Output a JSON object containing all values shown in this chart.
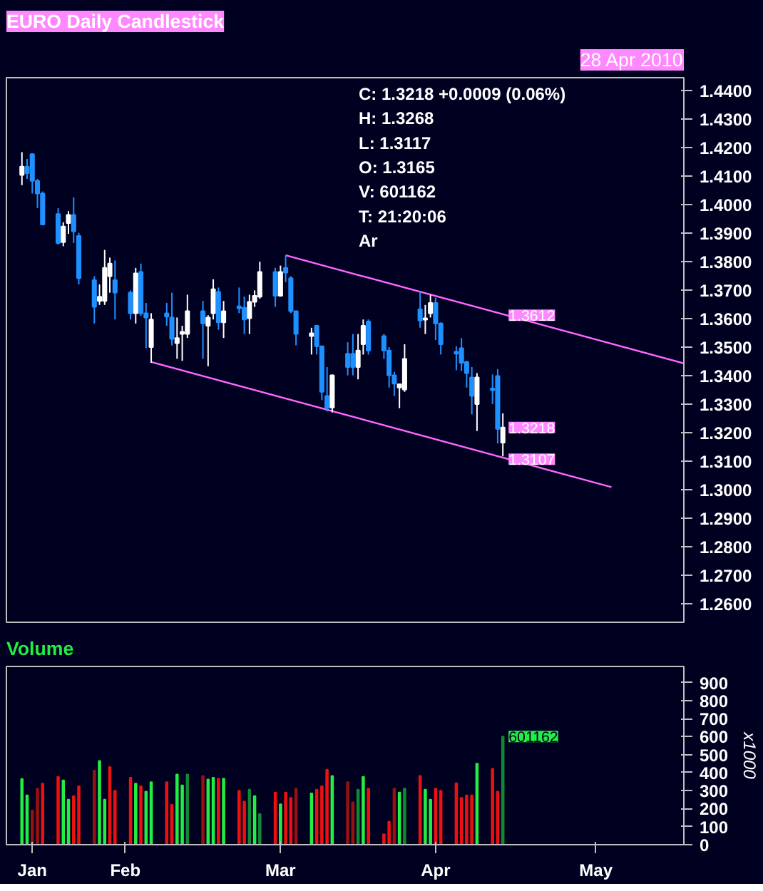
{
  "chart_data": [
    {
      "type": "candlestick",
      "title": "EURO Daily Candlestick",
      "subtitle": "28 Apr 2010",
      "annotations": [
        "C: 1.3218  +0.0009 (0.06%)",
        "H: 1.3268",
        "L: 1.3117",
        "O: 1.3165",
        "V: 601162",
        "T: 21:20:06",
        "Ar",
        {
          "text": "1.3612",
          "x": "2010-04-28",
          "y": 1.3612
        },
        {
          "text": "1.3218",
          "x": "2010-04-28",
          "y": 1.3218
        },
        {
          "text": "1.3107",
          "x": "2010-04-28",
          "y": 1.3107
        }
      ],
      "x": [
        "2010-01-25",
        "2010-01-26",
        "2010-01-27",
        "2010-01-28",
        "2010-01-29",
        "2010-02-01",
        "2010-02-02",
        "2010-02-03",
        "2010-02-04",
        "2010-02-05",
        "2010-02-08",
        "2010-02-09",
        "2010-02-10",
        "2010-02-11",
        "2010-02-12",
        "2010-02-15",
        "2010-02-16",
        "2010-02-17",
        "2010-02-18",
        "2010-02-19",
        "2010-02-22",
        "2010-02-23",
        "2010-02-24",
        "2010-02-25",
        "2010-02-26",
        "2010-03-01",
        "2010-03-02",
        "2010-03-03",
        "2010-03-04",
        "2010-03-05",
        "2010-03-08",
        "2010-03-09",
        "2010-03-10",
        "2010-03-11",
        "2010-03-12",
        "2010-03-15",
        "2010-03-16",
        "2010-03-17",
        "2010-03-18",
        "2010-03-19",
        "2010-03-22",
        "2010-03-23",
        "2010-03-24",
        "2010-03-25",
        "2010-03-26",
        "2010-03-29",
        "2010-03-30",
        "2010-03-31",
        "2010-04-01",
        "2010-04-02",
        "2010-04-05",
        "2010-04-06",
        "2010-04-07",
        "2010-04-08",
        "2010-04-09",
        "2010-04-12",
        "2010-04-13",
        "2010-04-14",
        "2010-04-15",
        "2010-04-16",
        "2010-04-19",
        "2010-04-20",
        "2010-04-21",
        "2010-04-22",
        "2010-04-23",
        "2010-04-26",
        "2010-04-27",
        "2010-04-28"
      ],
      "ohlc": [
        [
          1.4104,
          1.4184,
          1.4068,
          1.4133
        ],
        [
          1.4133,
          1.416,
          1.409,
          1.411
        ],
        [
          1.4177,
          1.418,
          1.4039,
          1.4083
        ],
        [
          1.4083,
          1.409,
          1.3988,
          1.4039
        ],
        [
          1.4039,
          1.4046,
          1.393,
          1.393
        ],
        [
          1.3967,
          1.3988,
          1.386,
          1.3865
        ],
        [
          1.3868,
          1.3938,
          1.3854,
          1.3923
        ],
        [
          1.3935,
          1.3977,
          1.3897,
          1.3964
        ],
        [
          1.3964,
          1.4025,
          1.3865,
          1.3906
        ],
        [
          1.389,
          1.3901,
          1.372,
          1.3742
        ],
        [
          1.3735,
          1.3749,
          1.3583,
          1.3641
        ],
        [
          1.3662,
          1.372,
          1.3648,
          1.3677
        ],
        [
          1.3662,
          1.3841,
          1.3648,
          1.3778
        ],
        [
          1.3749,
          1.3814,
          1.3691,
          1.3793
        ],
        [
          1.3735,
          1.3804,
          1.3597,
          1.3691
        ],
        [
          1.3691,
          1.3699,
          1.3597,
          1.3619
        ],
        [
          1.3619,
          1.3778,
          1.3583,
          1.3759
        ],
        [
          1.3764,
          1.3793,
          1.361,
          1.3619
        ],
        [
          1.3619,
          1.3655,
          1.3496,
          1.3604
        ],
        [
          1.35,
          1.3619,
          1.3445,
          1.3597
        ],
        [
          1.3619,
          1.3655,
          1.3575,
          1.3607
        ],
        [
          1.3604,
          1.3691,
          1.3506,
          1.3529
        ],
        [
          1.3514,
          1.3604,
          1.3459,
          1.3532
        ],
        [
          1.3546,
          1.3575,
          1.3452,
          1.3554
        ],
        [
          1.3546,
          1.3684,
          1.3532,
          1.3626
        ],
        [
          1.3626,
          1.3662,
          1.3459,
          1.3583
        ],
        [
          1.3575,
          1.3612,
          1.3433,
          1.3604
        ],
        [
          1.3619,
          1.3738,
          1.3597,
          1.3703
        ],
        [
          1.3694,
          1.3709,
          1.3561,
          1.3587
        ],
        [
          1.3587,
          1.3662,
          1.3532,
          1.3626
        ],
        [
          1.3643,
          1.3709,
          1.3619,
          1.3636
        ],
        [
          1.3638,
          1.3677,
          1.3546,
          1.3597
        ],
        [
          1.3601,
          1.3684,
          1.3546,
          1.3659
        ],
        [
          1.3659,
          1.3699,
          1.3641,
          1.368
        ],
        [
          1.3677,
          1.38,
          1.367,
          1.3764
        ],
        [
          1.3764,
          1.3778,
          1.3641,
          1.368
        ],
        [
          1.368,
          1.3786,
          1.3677,
          1.3764
        ],
        [
          1.3778,
          1.3822,
          1.3728,
          1.3761
        ],
        [
          1.3742,
          1.3749,
          1.3619,
          1.3626
        ],
        [
          1.3626,
          1.3626,
          1.3506,
          1.3546
        ],
        [
          1.3539,
          1.3568,
          1.3474,
          1.3549
        ],
        [
          1.3575,
          1.3575,
          1.3474,
          1.3503
        ],
        [
          1.3503,
          1.3503,
          1.3314,
          1.3343
        ],
        [
          1.3329,
          1.343,
          1.3274,
          1.3286
        ],
        [
          1.3288,
          1.3404,
          1.3271,
          1.3401
        ],
        [
          1.3477,
          1.3517,
          1.3401,
          1.343
        ],
        [
          1.3477,
          1.3546,
          1.3401,
          1.343
        ],
        [
          1.343,
          1.3546,
          1.3387,
          1.3488
        ],
        [
          1.351,
          1.3597,
          1.3474,
          1.3575
        ],
        [
          1.359,
          1.3597,
          1.3474,
          1.3488
        ],
        [
          1.3539,
          1.3546,
          1.3459,
          1.3488
        ],
        [
          1.3488,
          1.35,
          1.3358,
          1.3401
        ],
        [
          1.3401,
          1.3413,
          1.3329,
          1.3372
        ],
        [
          1.3358,
          1.3372,
          1.3286,
          1.337
        ],
        [
          1.3351,
          1.351,
          1.3343,
          1.3459
        ],
        [
          1.3633,
          1.3694,
          1.3568,
          1.3593
        ],
        [
          1.3596,
          1.3648,
          1.3546,
          1.3601
        ],
        [
          1.3619,
          1.3684,
          1.3604,
          1.3655
        ],
        [
          1.3655,
          1.3674,
          1.3525,
          1.3583
        ],
        [
          1.3583,
          1.3587,
          1.3474,
          1.351
        ],
        [
          1.3484,
          1.3503,
          1.3419,
          1.3477
        ],
        [
          1.3496,
          1.3532,
          1.3416,
          1.3445
        ],
        [
          1.3448,
          1.3452,
          1.3358,
          1.3409
        ],
        [
          1.3394,
          1.343,
          1.3264,
          1.3329
        ],
        [
          1.33,
          1.3409,
          1.3206,
          1.3394
        ],
        [
          1.3355,
          1.3404,
          1.33,
          1.3349
        ],
        [
          1.3399,
          1.3423,
          1.3162,
          1.3213
        ],
        [
          1.3165,
          1.3268,
          1.3117,
          1.3218
        ]
      ],
      "colors": [
        "#ffffff",
        "#1e90ff",
        "#1e90ff",
        "#1e90ff",
        "#1e90ff",
        "#1e90ff",
        "#ffffff",
        "#ffffff",
        "#1e90ff",
        "#1e90ff",
        "#1e90ff",
        "#ffffff",
        "#ffffff",
        "#ffffff",
        "#1e90ff",
        "#1e90ff",
        "#ffffff",
        "#1e90ff",
        "#1e90ff",
        "#ffffff",
        "#1e90ff",
        "#1e90ff",
        "#ffffff",
        "#ffffff",
        "#ffffff",
        "#1e90ff",
        "#ffffff",
        "#ffffff",
        "#1e90ff",
        "#ffffff",
        "#1e90ff",
        "#1e90ff",
        "#ffffff",
        "#ffffff",
        "#ffffff",
        "#1e90ff",
        "#ffffff",
        "#1e90ff",
        "#1e90ff",
        "#1e90ff",
        "#ffffff",
        "#1e90ff",
        "#1e90ff",
        "#1e90ff",
        "#ffffff",
        "#1e90ff",
        "#1e90ff",
        "#ffffff",
        "#ffffff",
        "#1e90ff",
        "#1e90ff",
        "#1e90ff",
        "#1e90ff",
        "#ffffff",
        "#ffffff",
        "#1e90ff",
        "#ffffff",
        "#ffffff",
        "#1e90ff",
        "#1e90ff",
        "#1e90ff",
        "#1e90ff",
        "#1e90ff",
        "#1e90ff",
        "#ffffff",
        "#1e90ff",
        "#1e90ff",
        "#ffffff"
      ],
      "series": [
        {
          "type": "line",
          "color": "#ff66ff",
          "x": [
            "2010-03-17",
            "2010-06-02"
          ],
          "values": [
            1.3822,
            1.3443
          ]
        },
        {
          "type": "line",
          "color": "#ff66ff",
          "x": [
            "2010-02-19",
            "2010-05-19"
          ],
          "values": [
            1.3448,
            1.3009
          ]
        }
      ],
      "xlim": [
        "2010-01-22",
        "2010-06-02"
      ],
      "ylim": [
        1.2535,
        1.4445
      ],
      "yticks": [
        {
          "value": 1.26,
          "label": "1.2600"
        },
        {
          "value": 1.27,
          "label": "1.2700"
        },
        {
          "value": 1.28,
          "label": "1.2800"
        },
        {
          "value": 1.29,
          "label": "1.2900"
        },
        {
          "value": 1.3,
          "label": "1.3000"
        },
        {
          "value": 1.31,
          "label": "1.3100"
        },
        {
          "value": 1.32,
          "label": "1.3200"
        },
        {
          "value": 1.33,
          "label": "1.3300"
        },
        {
          "value": 1.34,
          "label": "1.3400"
        },
        {
          "value": 1.35,
          "label": "1.3500"
        },
        {
          "value": 1.36,
          "label": "1.3600"
        },
        {
          "value": 1.37,
          "label": "1.3700"
        },
        {
          "value": 1.38,
          "label": "1.3800"
        },
        {
          "value": 1.39,
          "label": "1.3900"
        },
        {
          "value": 1.4,
          "label": "1.4000"
        },
        {
          "value": 1.41,
          "label": "1.4100"
        },
        {
          "value": 1.42,
          "label": "1.4200"
        },
        {
          "value": 1.43,
          "label": "1.4300"
        },
        {
          "value": 1.44,
          "label": "1.4400"
        }
      ],
      "tick_labels": "y"
    },
    {
      "type": "bar",
      "title": "Volume",
      "ylabel": "x1000",
      "annotations": [
        {
          "text": "601162",
          "x": "2010-04-28",
          "y": 601.162
        }
      ],
      "x": [
        "2010-01-25",
        "2010-01-26",
        "2010-01-27",
        "2010-01-28",
        "2010-01-29",
        "2010-02-01",
        "2010-02-02",
        "2010-02-03",
        "2010-02-04",
        "2010-02-05",
        "2010-02-08",
        "2010-02-09",
        "2010-02-10",
        "2010-02-11",
        "2010-02-12",
        "2010-02-15",
        "2010-02-16",
        "2010-02-17",
        "2010-02-18",
        "2010-02-19",
        "2010-02-22",
        "2010-02-23",
        "2010-02-24",
        "2010-02-25",
        "2010-02-26",
        "2010-03-01",
        "2010-03-02",
        "2010-03-03",
        "2010-03-04",
        "2010-03-05",
        "2010-03-08",
        "2010-03-09",
        "2010-03-10",
        "2010-03-11",
        "2010-03-12",
        "2010-03-15",
        "2010-03-16",
        "2010-03-17",
        "2010-03-18",
        "2010-03-19",
        "2010-03-22",
        "2010-03-23",
        "2010-03-24",
        "2010-03-25",
        "2010-03-26",
        "2010-03-29",
        "2010-03-30",
        "2010-03-31",
        "2010-04-01",
        "2010-04-02",
        "2010-04-05",
        "2010-04-06",
        "2010-04-07",
        "2010-04-08",
        "2010-04-09",
        "2010-04-12",
        "2010-04-13",
        "2010-04-14",
        "2010-04-15",
        "2010-04-16",
        "2010-04-19",
        "2010-04-20",
        "2010-04-21",
        "2010-04-22",
        "2010-04-23",
        "2010-04-26",
        "2010-04-27",
        "2010-04-28"
      ],
      "values": [
        365,
        274,
        190,
        312,
        340,
        377,
        357,
        250,
        270,
        325,
        412,
        465,
        250,
        432,
        300,
        372,
        340,
        325,
        295,
        347,
        347,
        222,
        390,
        330,
        390,
        382,
        362,
        372,
        367,
        367,
        300,
        240,
        306,
        270,
        170,
        290,
        225,
        290,
        260,
        312,
        285,
        306,
        325,
        417,
        382,
        347,
        236,
        306,
        377,
        312,
        58,
        128,
        312,
        290,
        312,
        382,
        306,
        250,
        312,
        300,
        342,
        260,
        274,
        274,
        450,
        422,
        295,
        601.162
      ],
      "colors": [
        "#22ee44",
        "#22ee44",
        "#991111",
        "#991111",
        "#ee1111",
        "#ee1111",
        "#22ee44",
        "#22ee44",
        "#ee1111",
        "#ee1111",
        "#991111",
        "#22ee44",
        "#22ee44",
        "#ee1111",
        "#ee1111",
        "#ee1111",
        "#22ee44",
        "#ee1111",
        "#22ee44",
        "#22ee44",
        "#ee1111",
        "#ee1111",
        "#22ee44",
        "#22ee44",
        "#118833",
        "#991111",
        "#22ee44",
        "#22ee44",
        "#ee1111",
        "#22ee44",
        "#ee1111",
        "#ee1111",
        "#118833",
        "#22ee44",
        "#118833",
        "#ee1111",
        "#22ee44",
        "#ee1111",
        "#ee1111",
        "#991111",
        "#22ee44",
        "#ee1111",
        "#ee1111",
        "#ee1111",
        "#22ee44",
        "#991111",
        "#991111",
        "#118833",
        "#22ee44",
        "#ee1111",
        "#ee1111",
        "#ee1111",
        "#991111",
        "#22ee44",
        "#118833",
        "#ee1111",
        "#22ee44",
        "#22ee44",
        "#ee1111",
        "#ee1111",
        "#ee1111",
        "#ee1111",
        "#ee1111",
        "#ee1111",
        "#22ee44",
        "#ee1111",
        "#ee1111",
        "#118833"
      ],
      "xlim": [
        "2010-01-22",
        "2010-06-02"
      ],
      "ylim": [
        0,
        990
      ],
      "xticks": [
        {
          "value": "2010-01-27",
          "label": "Jan"
        },
        {
          "value": "2010-02-14",
          "label": "Feb"
        },
        {
          "value": "2010-03-16",
          "label": "Mar"
        },
        {
          "value": "2010-04-15",
          "label": "Apr"
        },
        {
          "value": "2010-05-16",
          "label": "May"
        }
      ],
      "yticks": [
        0,
        100,
        200,
        300,
        400,
        500,
        600,
        700,
        800,
        900
      ]
    }
  ]
}
